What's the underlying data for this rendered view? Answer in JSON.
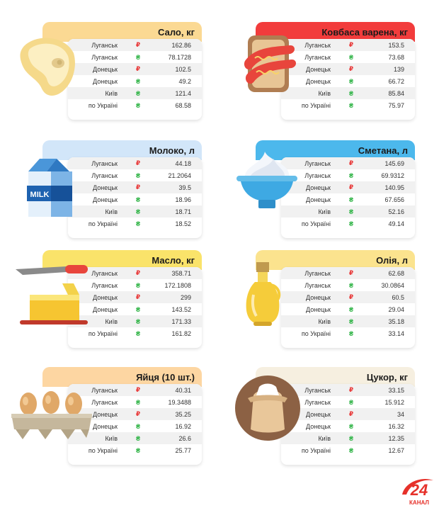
{
  "colors": {
    "rub": "#e83b3b",
    "uah": "#36b64c"
  },
  "symbols": {
    "rub": "₽",
    "uah": "₴"
  },
  "cards": [
    {
      "title": "Сало, кг",
      "color": "#fbd993",
      "icon": "lard-icon",
      "rows": [
        {
          "city": "Луганськ",
          "cur": "rub",
          "value": "162.86"
        },
        {
          "city": "Луганськ",
          "cur": "uah",
          "value": "78.1728"
        },
        {
          "city": "Донецьк",
          "cur": "rub",
          "value": "102.5"
        },
        {
          "city": "Донецьк",
          "cur": "uah",
          "value": "49.2"
        },
        {
          "city": "Київ",
          "cur": "uah",
          "value": "121.4"
        },
        {
          "city": "по Україні",
          "cur": "uah",
          "value": "68.58"
        }
      ]
    },
    {
      "title": "Ковбаса варена, кг",
      "color": "#f23c3c",
      "icon": "sausage-sandwich-icon",
      "rows": [
        {
          "city": "Луганськ",
          "cur": "rub",
          "value": "153.5"
        },
        {
          "city": "Луганськ",
          "cur": "uah",
          "value": "73.68"
        },
        {
          "city": "Донецьк",
          "cur": "rub",
          "value": "139"
        },
        {
          "city": "Донецьк",
          "cur": "uah",
          "value": "66.72"
        },
        {
          "city": "Київ",
          "cur": "uah",
          "value": "85.84"
        },
        {
          "city": "по Україні",
          "cur": "uah",
          "value": "75.97"
        }
      ]
    },
    {
      "title": "Молоко, л",
      "color": "#d2e6f9",
      "icon": "milk-carton-icon",
      "rows": [
        {
          "city": "Луганськ",
          "cur": "rub",
          "value": "44.18"
        },
        {
          "city": "Луганськ",
          "cur": "uah",
          "value": "21.2064"
        },
        {
          "city": "Донецьк",
          "cur": "rub",
          "value": "39.5"
        },
        {
          "city": "Донецьк",
          "cur": "uah",
          "value": "18.96"
        },
        {
          "city": "Київ",
          "cur": "uah",
          "value": "18.71"
        },
        {
          "city": "по Україні",
          "cur": "uah",
          "value": "18.52"
        }
      ]
    },
    {
      "title": "Сметана, л",
      "color": "#4cb8ec",
      "icon": "sour-cream-bowl-icon",
      "rows": [
        {
          "city": "Луганськ",
          "cur": "rub",
          "value": "145.69"
        },
        {
          "city": "Луганськ",
          "cur": "uah",
          "value": "69.9312"
        },
        {
          "city": "Донецьк",
          "cur": "rub",
          "value": "140.95"
        },
        {
          "city": "Донецьк",
          "cur": "uah",
          "value": "67.656"
        },
        {
          "city": "Київ",
          "cur": "uah",
          "value": "52.16"
        },
        {
          "city": "по Україні",
          "cur": "uah",
          "value": "49.14"
        }
      ]
    },
    {
      "title": "Масло, кг",
      "color": "#fae36a",
      "icon": "butter-knife-icon",
      "rows": [
        {
          "city": "Луганськ",
          "cur": "rub",
          "value": "358.71"
        },
        {
          "city": "Луганськ",
          "cur": "uah",
          "value": "172.1808"
        },
        {
          "city": "Донецьк",
          "cur": "rub",
          "value": "299"
        },
        {
          "city": "Донецьк",
          "cur": "uah",
          "value": "143.52"
        },
        {
          "city": "Київ",
          "cur": "uah",
          "value": "171.33"
        },
        {
          "city": "по Україні",
          "cur": "uah",
          "value": "161.82"
        }
      ]
    },
    {
      "title": "Олія, л",
      "color": "#fbe38e",
      "icon": "oil-bottle-icon",
      "rows": [
        {
          "city": "Луганськ",
          "cur": "rub",
          "value": "62.68"
        },
        {
          "city": "Луганськ",
          "cur": "uah",
          "value": "30.0864"
        },
        {
          "city": "Донецьк",
          "cur": "rub",
          "value": "60.5"
        },
        {
          "city": "Донецьк",
          "cur": "uah",
          "value": "29.04"
        },
        {
          "city": "Київ",
          "cur": "uah",
          "value": "35.18"
        },
        {
          "city": "по Україні",
          "cur": "uah",
          "value": "33.14"
        }
      ]
    },
    {
      "title": "Яйця (10 шт.)",
      "color": "#fdd6a2",
      "icon": "egg-tray-icon",
      "rows": [
        {
          "city": "Луганськ",
          "cur": "rub",
          "value": "40.31"
        },
        {
          "city": "Луганськ",
          "cur": "uah",
          "value": "19.3488"
        },
        {
          "city": "Донецьк",
          "cur": "rub",
          "value": "35.25"
        },
        {
          "city": "Донецьк",
          "cur": "uah",
          "value": "16.92"
        },
        {
          "city": "Київ",
          "cur": "uah",
          "value": "26.6"
        },
        {
          "city": "по Україні",
          "cur": "uah",
          "value": "25.77"
        }
      ]
    },
    {
      "title": "Цукор, кг",
      "color": "#f6efe0",
      "icon": "sugar-sack-icon",
      "rows": [
        {
          "city": "Луганськ",
          "cur": "rub",
          "value": "33.15"
        },
        {
          "city": "Луганськ",
          "cur": "uah",
          "value": "15.912"
        },
        {
          "city": "Донецьк",
          "cur": "rub",
          "value": "34"
        },
        {
          "city": "Донецьк",
          "cur": "uah",
          "value": "16.32"
        },
        {
          "city": "Київ",
          "cur": "uah",
          "value": "12.35"
        },
        {
          "city": "по Україні",
          "cur": "uah",
          "value": "12.67"
        }
      ]
    }
  ],
  "logo": {
    "number": "24",
    "caption": "КАНАЛ",
    "color": "#e6312a"
  }
}
